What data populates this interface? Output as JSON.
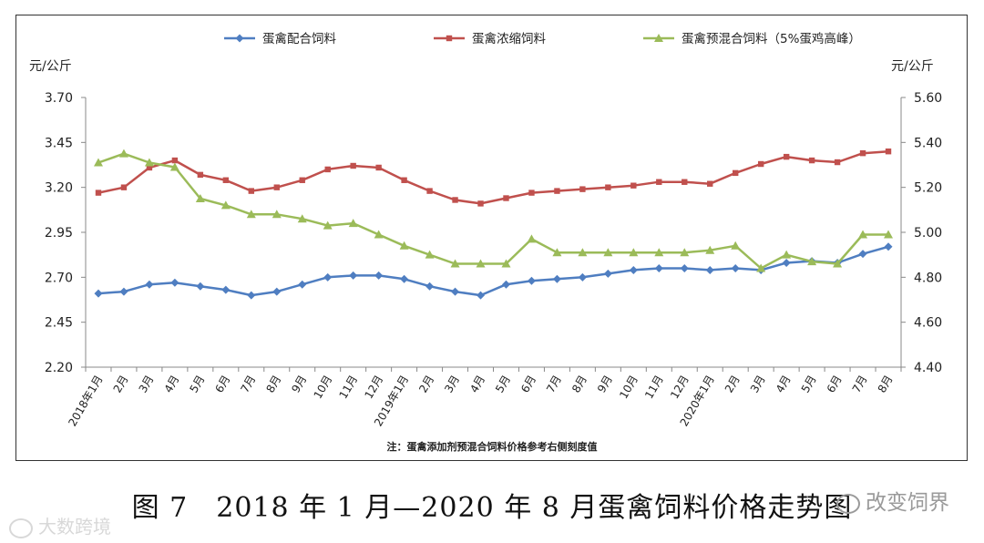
{
  "chart_data": {
    "type": "line",
    "left_axis_unit": "元/公斤",
    "right_axis_unit": "元/公斤",
    "left_ylim": [
      2.2,
      3.7
    ],
    "right_ylim": [
      4.4,
      5.6
    ],
    "left_ticks": [
      "3.70",
      "3.45",
      "3.20",
      "2.95",
      "2.70",
      "2.45",
      "2.20"
    ],
    "right_ticks": [
      "5.60",
      "5.40",
      "5.20",
      "5.00",
      "4.80",
      "4.60",
      "4.40"
    ],
    "categories": [
      "2018年1月",
      "2月",
      "3月",
      "4月",
      "5月",
      "6月",
      "7月",
      "8月",
      "9月",
      "10月",
      "11月",
      "12月",
      "2019年1月",
      "2月",
      "3月",
      "4月",
      "5月",
      "6月",
      "7月",
      "8月",
      "9月",
      "10月",
      "11月",
      "12月",
      "2020年1月",
      "2月",
      "3月",
      "4月",
      "5月",
      "6月",
      "7月",
      "8月"
    ],
    "series": [
      {
        "name": "蛋禽配合饲料",
        "axis": "left",
        "color": "#4f7ec1",
        "marker": "diamond",
        "values": [
          2.61,
          2.62,
          2.66,
          2.67,
          2.65,
          2.63,
          2.6,
          2.62,
          2.66,
          2.7,
          2.71,
          2.71,
          2.69,
          2.65,
          2.62,
          2.6,
          2.66,
          2.68,
          2.69,
          2.7,
          2.72,
          2.74,
          2.75,
          2.75,
          2.74,
          2.75,
          2.74,
          2.78,
          2.79,
          2.78,
          2.83,
          2.87
        ]
      },
      {
        "name": "蛋禽浓缩饲料",
        "axis": "left",
        "color": "#c0504d",
        "marker": "square",
        "values": [
          3.17,
          3.2,
          3.31,
          3.35,
          3.27,
          3.24,
          3.18,
          3.2,
          3.24,
          3.3,
          3.32,
          3.31,
          3.24,
          3.18,
          3.13,
          3.11,
          3.14,
          3.17,
          3.18,
          3.19,
          3.2,
          3.21,
          3.23,
          3.23,
          3.22,
          3.28,
          3.33,
          3.37,
          3.35,
          3.34,
          3.39,
          3.4
        ]
      },
      {
        "name": "蛋禽预混合饲料（5%蛋鸡高峰）",
        "axis": "right",
        "color": "#9bbb59",
        "marker": "triangle",
        "values": [
          5.31,
          5.35,
          5.31,
          5.29,
          5.15,
          5.12,
          5.08,
          5.08,
          5.06,
          5.03,
          5.04,
          4.99,
          4.94,
          4.9,
          4.86,
          4.86,
          4.86,
          4.97,
          4.91,
          4.91,
          4.91,
          4.91,
          4.91,
          4.91,
          4.92,
          4.94,
          4.84,
          4.9,
          4.87,
          4.86,
          4.99,
          4.99
        ]
      }
    ],
    "note": "注：蛋禽添加剂预混合饲料价格参考右侧刻度值"
  },
  "caption": "图 7　2018 年 1 月—2020 年 8 月蛋禽饲料价格走势图",
  "watermark_left": "大数跨境",
  "watermark_right": "改变饲界"
}
